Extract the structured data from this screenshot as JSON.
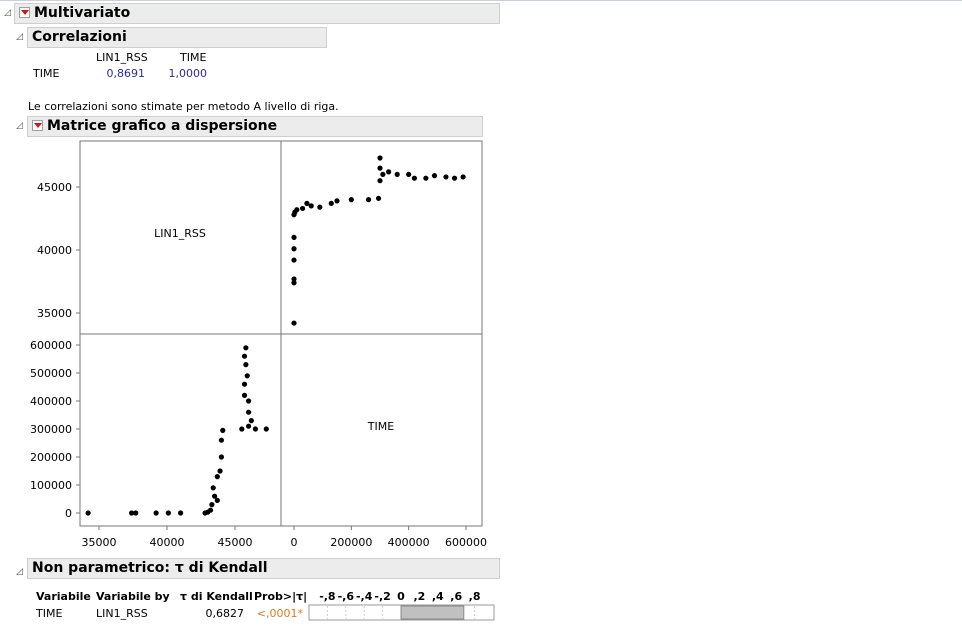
{
  "multivariate": {
    "title": "Multivariato"
  },
  "correlations": {
    "title": "Correlazioni",
    "col_headers": [
      "LIN1_RSS",
      "TIME"
    ],
    "row_label": "TIME",
    "values": [
      "0,8691",
      "1,0000"
    ],
    "note": "Le correlazioni sono stimate per metodo A livello di riga."
  },
  "scatter_matrix": {
    "title": "Matrice grafico a dispersione",
    "var1": "LIN1_RSS",
    "var2": "TIME",
    "lin_ticks": [
      "35000",
      "40000",
      "45000"
    ],
    "time_ticks": [
      "0",
      "100000",
      "200000",
      "300000",
      "400000",
      "500000",
      "600000"
    ],
    "time_xticks": [
      "0",
      "200000",
      "400000",
      "600000"
    ]
  },
  "kendall": {
    "title": "Non parametrico: τ di Kendall",
    "headers": [
      "Variabile",
      "Variabile by",
      "τ di Kendall",
      "Prob>|τ|"
    ],
    "bar_scale": [
      "-,8",
      "-,6",
      "-,4",
      "-,2",
      "0",
      ",2",
      ",4",
      ",6",
      ",8"
    ],
    "row": {
      "var": "TIME",
      "by": "LIN1_RSS",
      "tau": "0,6827",
      "prob": "<,0001*"
    },
    "tau_value": 0.6827
  },
  "chart_data": {
    "type": "scatter",
    "title": "Matrice grafico a dispersione",
    "variables": [
      "LIN1_RSS",
      "TIME"
    ],
    "axis_ranges": {
      "LIN1_RSS": [
        33500,
        48500
      ],
      "TIME": [
        -25000,
        630000
      ]
    },
    "points_time_vs_lin": [
      [
        0,
        34200
      ],
      [
        0,
        37400
      ],
      [
        0,
        37700
      ],
      [
        0,
        39200
      ],
      [
        0,
        40100
      ],
      [
        0,
        41000
      ],
      [
        0,
        42800
      ],
      [
        3000,
        43000
      ],
      [
        10000,
        43200
      ],
      [
        30000,
        43300
      ],
      [
        45000,
        43700
      ],
      [
        60000,
        43500
      ],
      [
        90000,
        43400
      ],
      [
        130000,
        43700
      ],
      [
        150000,
        43900
      ],
      [
        200000,
        44000
      ],
      [
        260000,
        44000
      ],
      [
        295000,
        44100
      ],
      [
        300000,
        45500
      ],
      [
        300000,
        46500
      ],
      [
        300000,
        47300
      ],
      [
        310000,
        46000
      ],
      [
        330000,
        46200
      ],
      [
        360000,
        46000
      ],
      [
        400000,
        46000
      ],
      [
        420000,
        45700
      ],
      [
        460000,
        45700
      ],
      [
        490000,
        45900
      ],
      [
        530000,
        45800
      ],
      [
        560000,
        45700
      ],
      [
        590000,
        45800
      ]
    ]
  },
  "colors": {
    "header_bg": "#ececec",
    "value_blue": "#2b2ba8",
    "significant_orange": "#e07a1a",
    "bar_fill": "#c0c0c0"
  }
}
